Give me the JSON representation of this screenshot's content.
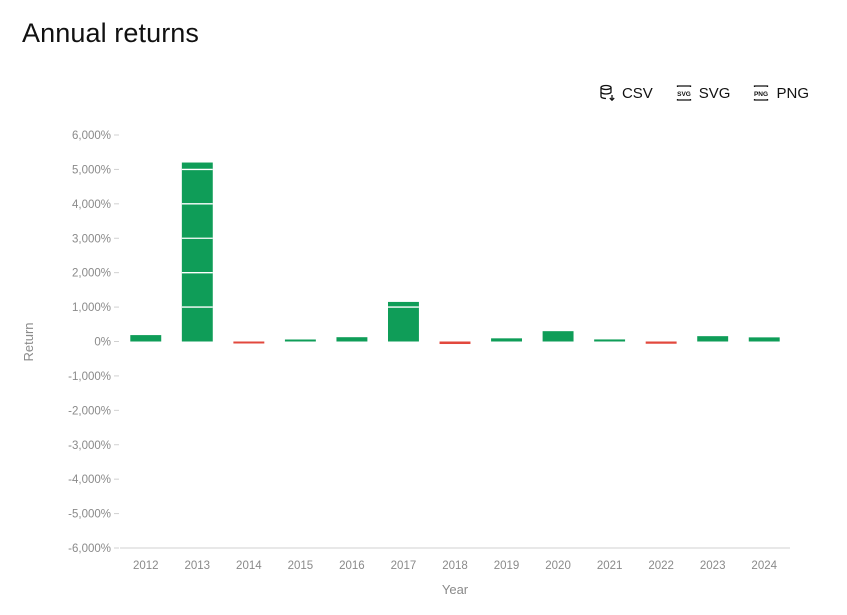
{
  "header": {
    "title": "Annual returns"
  },
  "exports": [
    {
      "label": "CSV",
      "icon": "database-download-icon"
    },
    {
      "label": "SVG",
      "icon": "svg-file-icon"
    },
    {
      "label": "PNG",
      "icon": "png-file-icon"
    }
  ],
  "colors": {
    "positive": "#0f9d58",
    "negative": "#e2483d",
    "axis": "#d0d0d0",
    "text": "#8a8a8a"
  },
  "chart_data": {
    "type": "bar",
    "xlabel": "Year",
    "ylabel": "Return",
    "ylim": [
      -6000,
      6000
    ],
    "yticks": [
      6000,
      5000,
      4000,
      3000,
      2000,
      1000,
      0,
      -1000,
      -2000,
      -3000,
      -4000,
      -5000,
      -6000
    ],
    "ytick_labels": [
      "6,000%",
      "5,000%",
      "4,000%",
      "3,000%",
      "2,000%",
      "1,000%",
      "0%",
      "-1,000%",
      "-2,000%",
      "-3,000%",
      "-4,000%",
      "-5,000%",
      "-6,000%"
    ],
    "categories": [
      "2012",
      "2013",
      "2014",
      "2015",
      "2016",
      "2017",
      "2018",
      "2019",
      "2020",
      "2021",
      "2022",
      "2023",
      "2024"
    ],
    "values": [
      186,
      5200,
      -58,
      35,
      125,
      1150,
      -73,
      92,
      300,
      60,
      -65,
      155,
      120
    ],
    "grid": false,
    "legend": "none"
  }
}
